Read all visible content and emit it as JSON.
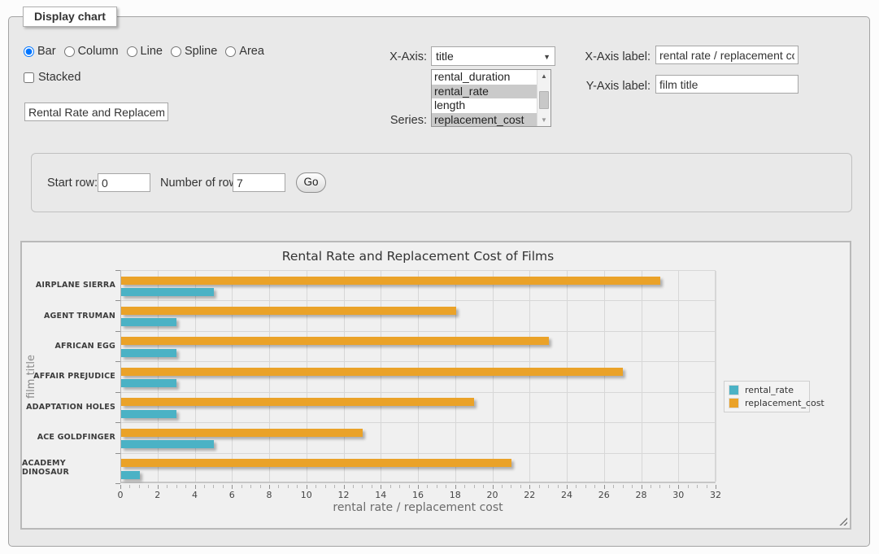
{
  "form": {
    "legend": "Display chart",
    "chart_types": [
      {
        "label": "Bar",
        "checked": true
      },
      {
        "label": "Column",
        "checked": false
      },
      {
        "label": "Line",
        "checked": false
      },
      {
        "label": "Spline",
        "checked": false
      },
      {
        "label": "Area",
        "checked": false
      }
    ],
    "stacked_label": "Stacked",
    "stacked_checked": false,
    "title_input_value": "Rental Rate and Replacement Cost of Films",
    "x_axis": {
      "label": "X-Axis:",
      "selected": "title"
    },
    "series_picker": {
      "label": "Series:",
      "selected_bg": "#cacaca",
      "options": [
        {
          "label": "rental_duration",
          "selected": false
        },
        {
          "label": "rental_rate",
          "selected": true
        },
        {
          "label": "length",
          "selected": false
        },
        {
          "label": "replacement_cost",
          "selected": true
        }
      ]
    },
    "x_axis_label": {
      "label": "X-Axis label:",
      "value": "rental rate / replacement cost"
    },
    "y_axis_label": {
      "label": "Y-Axis label:",
      "value": "film title"
    }
  },
  "row_controls": {
    "start_row_label": "Start row:",
    "start_row_value": "0",
    "num_rows_label": "Number of rows:",
    "num_rows_value": "7",
    "go_label": "Go"
  },
  "chart_data": {
    "type": "bar",
    "orientation": "horizontal",
    "title": "Rental Rate and Replacement Cost of Films",
    "xlabel": "rental rate / replacement cost",
    "ylabel": "film title",
    "categories": [
      "AIRPLANE SIERRA",
      "AGENT TRUMAN",
      "AFRICAN EGG",
      "AFFAIR PREJUDICE",
      "ADAPTATION HOLES",
      "ACE GOLDFINGER",
      "ACADEMY DINOSAUR"
    ],
    "series": [
      {
        "name": "rental_rate",
        "color": "#4bb2c5",
        "values": [
          4.99,
          2.99,
          2.99,
          2.99,
          2.99,
          4.99,
          0.99
        ]
      },
      {
        "name": "replacement_cost",
        "color": "#eaa228",
        "values": [
          28.99,
          17.99,
          22.99,
          26.99,
          18.99,
          12.99,
          20.99
        ]
      }
    ],
    "xlim": [
      0,
      32
    ],
    "x_tick_step": 2,
    "x_minor_tick_step": 0.5,
    "grid": true,
    "legend_position": "right",
    "series_display_order_top_to_bottom": [
      "replacement_cost",
      "rental_rate"
    ]
  }
}
